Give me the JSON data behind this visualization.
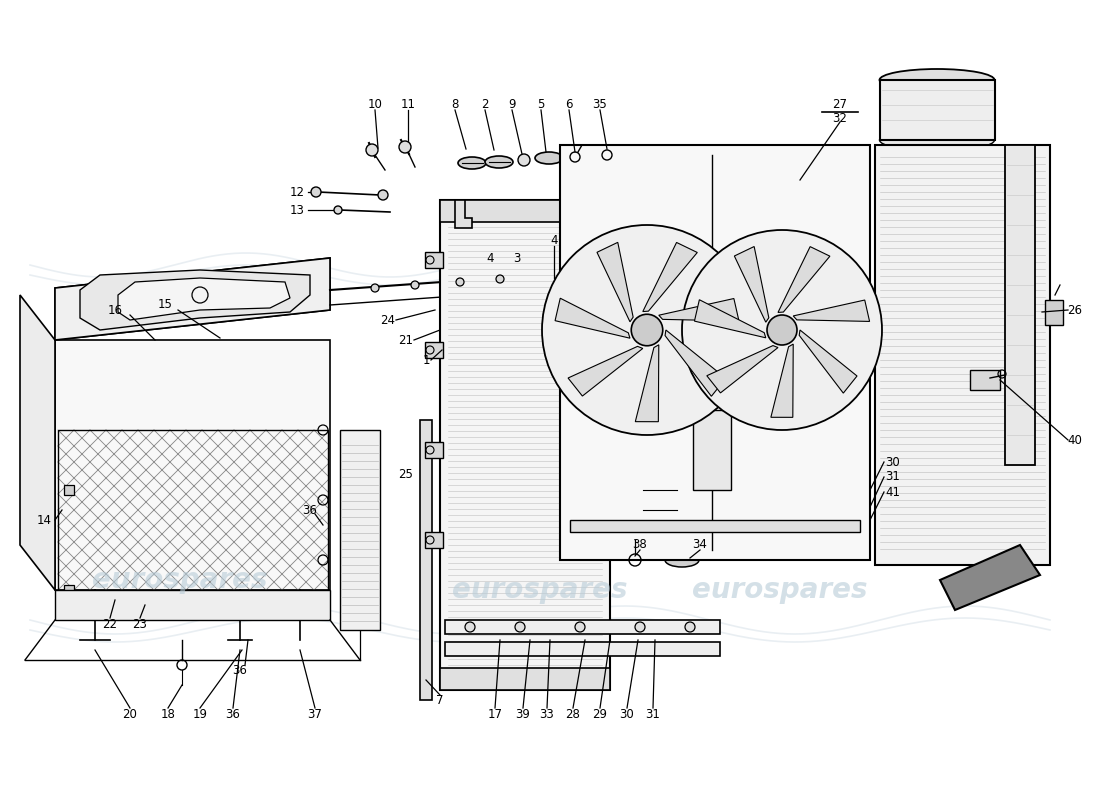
{
  "background_color": "#ffffff",
  "watermark_text": "eurospares",
  "watermark_color": "#b8ccd8",
  "fig_width": 11.0,
  "fig_height": 8.0,
  "dpi": 100,
  "line_color": "#000000",
  "light_gray": "#e8e8e8",
  "mid_gray": "#cccccc",
  "dark_gray": "#888888",
  "fs": 8.5,
  "lw": 1.2
}
